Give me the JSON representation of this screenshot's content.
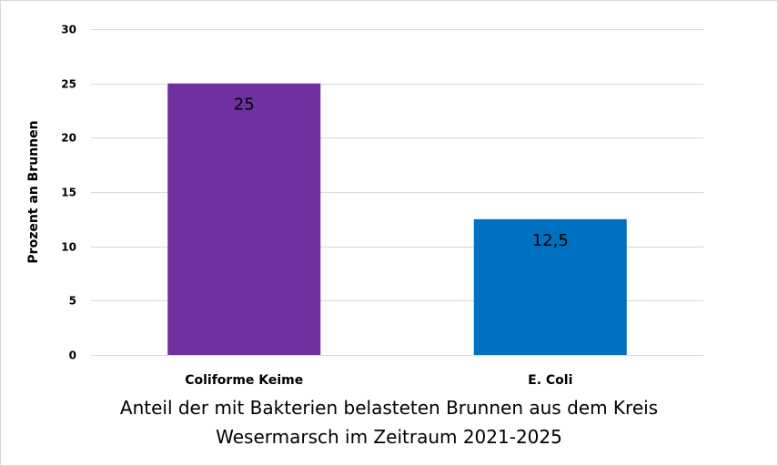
{
  "chart_data": {
    "type": "bar",
    "title": "Anteil der mit Bakterien belasteten Brunnen aus dem Kreis Wesermarsch im Zeitraum 2021-2025",
    "title_lines": [
      "Anteil der mit Bakterien belasteten Brunnen aus dem Kreis",
      "Wesermarsch im Zeitraum 2021-2025"
    ],
    "xlabel": "",
    "ylabel": "Prozent an Brunnen",
    "categories": [
      "Coliforme Keime",
      "E. Coli"
    ],
    "values": [
      25,
      12.5
    ],
    "data_labels": [
      "25",
      "12,5"
    ],
    "colors": [
      "#7030A0",
      "#0070C0"
    ],
    "ylim": [
      0,
      30
    ],
    "yticks": [
      0,
      5,
      10,
      15,
      20,
      25,
      30
    ],
    "grid": true,
    "gridColor": "#d9d9d9",
    "legend": "none"
  }
}
